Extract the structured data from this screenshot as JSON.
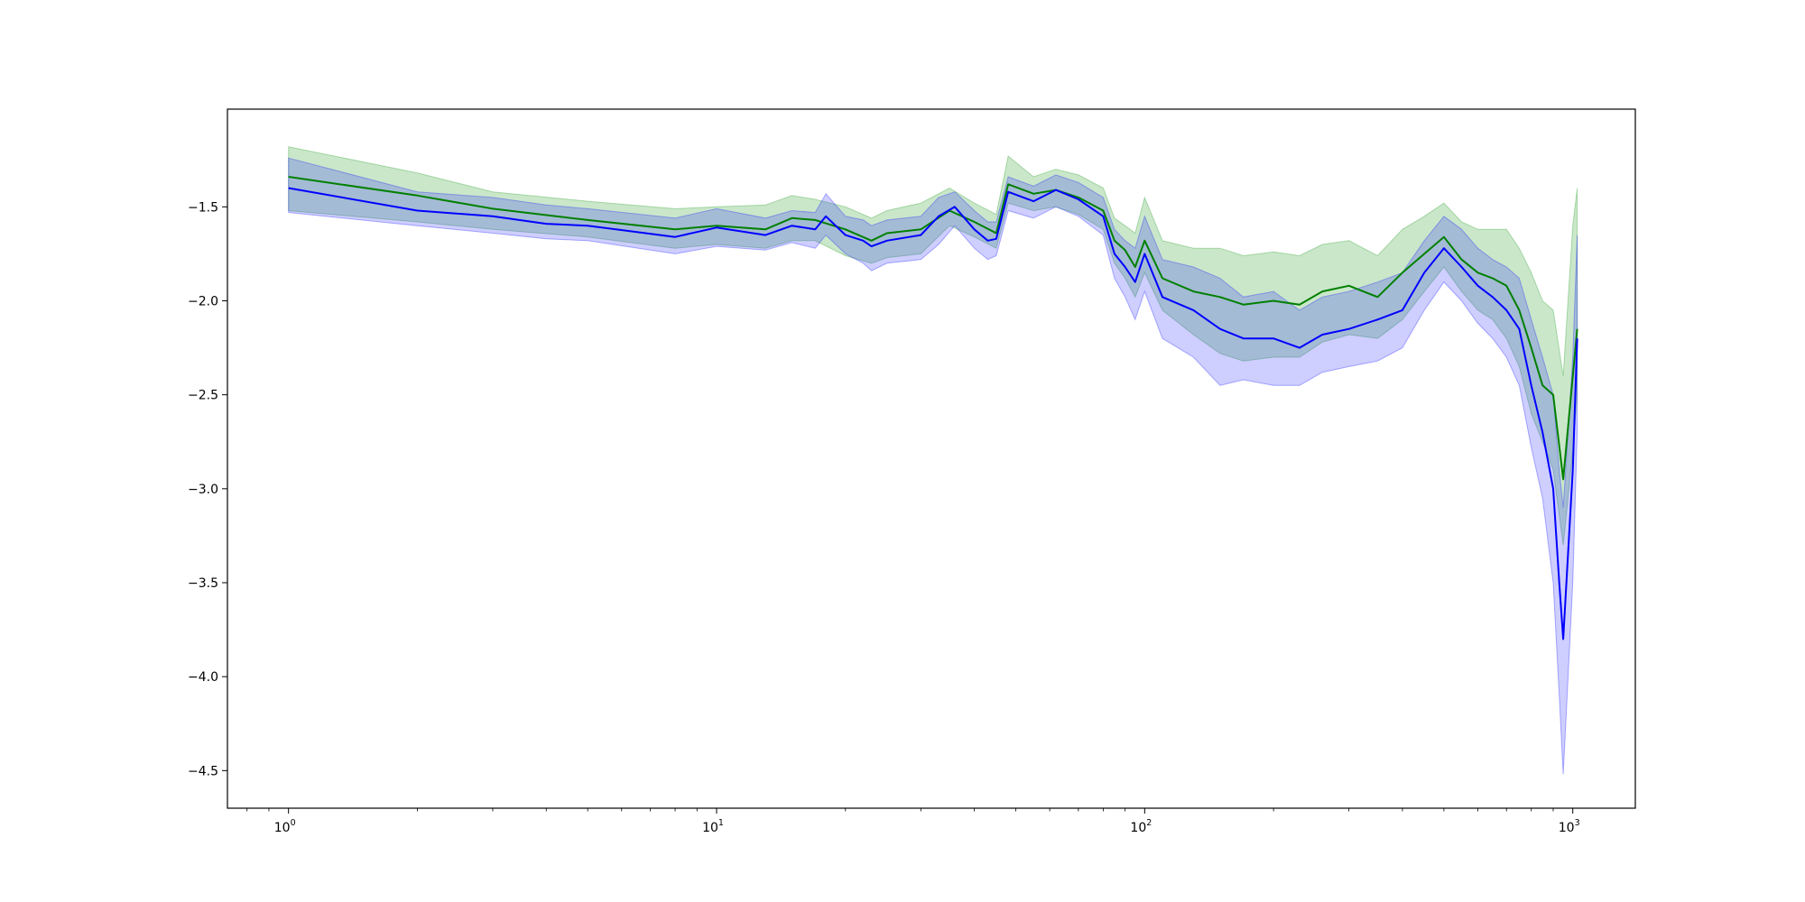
{
  "chart_data": {
    "type": "line",
    "title": "",
    "xlabel": "",
    "ylabel": "",
    "xscale": "log",
    "xlim": [
      0.72,
      1400
    ],
    "ylim": [
      -4.7,
      -0.98
    ],
    "grid": false,
    "legend": "none",
    "x_ticks": [
      {
        "base": "10",
        "exp": "0",
        "value": 1
      },
      {
        "base": "10",
        "exp": "1",
        "value": 10
      },
      {
        "base": "10",
        "exp": "2",
        "value": 100
      },
      {
        "base": "10",
        "exp": "3",
        "value": 1000
      }
    ],
    "y_ticks": [
      {
        "label": "−1.5",
        "value": -1.5
      },
      {
        "label": "−2.0",
        "value": -2.0
      },
      {
        "label": "−2.5",
        "value": -2.5
      },
      {
        "label": "−3.0",
        "value": -3.0
      },
      {
        "label": "−3.5",
        "value": -3.5
      },
      {
        "label": "−4.0",
        "value": -4.0
      },
      {
        "label": "−4.5",
        "value": -4.5
      }
    ],
    "series": [
      {
        "color": "#008000",
        "band_color": "#2ca02c",
        "band_opacity": 0.25,
        "x": [
          1,
          2,
          3,
          5,
          8,
          10,
          13,
          15,
          17,
          20,
          23,
          25,
          30,
          35,
          40,
          45,
          48,
          55,
          62,
          70,
          80,
          85,
          90,
          95,
          100,
          110,
          130,
          150,
          170,
          200,
          230,
          260,
          300,
          350,
          400,
          450,
          500,
          550,
          600,
          650,
          700,
          750,
          800,
          850,
          900,
          950,
          1000,
          1024
        ],
        "y": [
          -1.34,
          -1.44,
          -1.51,
          -1.57,
          -1.62,
          -1.6,
          -1.62,
          -1.56,
          -1.57,
          -1.62,
          -1.68,
          -1.64,
          -1.62,
          -1.52,
          -1.58,
          -1.64,
          -1.38,
          -1.43,
          -1.41,
          -1.45,
          -1.52,
          -1.68,
          -1.73,
          -1.82,
          -1.68,
          -1.88,
          -1.95,
          -1.98,
          -2.02,
          -2.0,
          -2.02,
          -1.95,
          -1.92,
          -1.98,
          -1.85,
          -1.75,
          -1.66,
          -1.78,
          -1.85,
          -1.88,
          -1.92,
          -2.05,
          -2.25,
          -2.45,
          -2.5,
          -2.95,
          -2.4,
          -2.15
        ],
        "lower": [
          -1.52,
          -1.58,
          -1.62,
          -1.66,
          -1.72,
          -1.7,
          -1.72,
          -1.68,
          -1.68,
          -1.76,
          -1.8,
          -1.77,
          -1.75,
          -1.6,
          -1.66,
          -1.72,
          -1.48,
          -1.52,
          -1.5,
          -1.54,
          -1.62,
          -1.8,
          -1.88,
          -1.98,
          -1.85,
          -2.05,
          -2.18,
          -2.28,
          -2.32,
          -2.3,
          -2.3,
          -2.22,
          -2.18,
          -2.2,
          -2.1,
          -1.95,
          -1.82,
          -1.95,
          -2.05,
          -2.1,
          -2.2,
          -2.35,
          -2.6,
          -2.75,
          -2.9,
          -3.3,
          -2.8,
          -2.5
        ],
        "upper": [
          -1.18,
          -1.32,
          -1.42,
          -1.47,
          -1.51,
          -1.5,
          -1.49,
          -1.44,
          -1.46,
          -1.5,
          -1.56,
          -1.52,
          -1.48,
          -1.4,
          -1.48,
          -1.54,
          -1.23,
          -1.34,
          -1.3,
          -1.33,
          -1.4,
          -1.56,
          -1.6,
          -1.64,
          -1.45,
          -1.68,
          -1.72,
          -1.72,
          -1.76,
          -1.74,
          -1.76,
          -1.7,
          -1.68,
          -1.76,
          -1.62,
          -1.55,
          -1.48,
          -1.58,
          -1.62,
          -1.62,
          -1.62,
          -1.72,
          -1.85,
          -2.0,
          -2.05,
          -2.4,
          -1.6,
          -1.4
        ]
      },
      {
        "color": "#0000ff",
        "band_color": "#1f1fff",
        "band_opacity": 0.22,
        "x": [
          1,
          2,
          3,
          4,
          5,
          8,
          10,
          13,
          15,
          17,
          18,
          20,
          22,
          23,
          25,
          30,
          33,
          36,
          40,
          43,
          45,
          48,
          55,
          62,
          70,
          80,
          85,
          90,
          95,
          100,
          110,
          130,
          150,
          170,
          200,
          230,
          260,
          300,
          350,
          400,
          450,
          500,
          550,
          600,
          650,
          700,
          750,
          800,
          850,
          900,
          930,
          950,
          1000,
          1024
        ],
        "y": [
          -1.4,
          -1.52,
          -1.55,
          -1.59,
          -1.6,
          -1.66,
          -1.61,
          -1.65,
          -1.6,
          -1.62,
          -1.55,
          -1.65,
          -1.68,
          -1.71,
          -1.68,
          -1.65,
          -1.55,
          -1.5,
          -1.62,
          -1.68,
          -1.67,
          -1.42,
          -1.47,
          -1.41,
          -1.46,
          -1.55,
          -1.75,
          -1.82,
          -1.9,
          -1.75,
          -1.98,
          -2.05,
          -2.15,
          -2.2,
          -2.2,
          -2.25,
          -2.18,
          -2.15,
          -2.1,
          -2.05,
          -1.85,
          -1.72,
          -1.82,
          -1.92,
          -1.98,
          -2.05,
          -2.15,
          -2.45,
          -2.7,
          -3.0,
          -3.5,
          -3.8,
          -2.9,
          -2.2
        ],
        "lower": [
          -1.53,
          -1.6,
          -1.64,
          -1.67,
          -1.68,
          -1.75,
          -1.71,
          -1.73,
          -1.69,
          -1.72,
          -1.65,
          -1.75,
          -1.8,
          -1.84,
          -1.8,
          -1.78,
          -1.7,
          -1.6,
          -1.72,
          -1.78,
          -1.76,
          -1.52,
          -1.56,
          -1.5,
          -1.55,
          -1.65,
          -1.88,
          -1.98,
          -2.1,
          -1.95,
          -2.2,
          -2.3,
          -2.45,
          -2.42,
          -2.45,
          -2.45,
          -2.38,
          -2.35,
          -2.32,
          -2.25,
          -2.05,
          -1.9,
          -2.0,
          -2.12,
          -2.2,
          -2.3,
          -2.45,
          -2.78,
          -3.05,
          -3.5,
          -4.1,
          -4.52,
          -3.5,
          -2.7
        ],
        "upper": [
          -1.24,
          -1.42,
          -1.45,
          -1.49,
          -1.51,
          -1.56,
          -1.51,
          -1.56,
          -1.52,
          -1.53,
          -1.43,
          -1.55,
          -1.57,
          -1.6,
          -1.57,
          -1.55,
          -1.45,
          -1.42,
          -1.52,
          -1.58,
          -1.58,
          -1.34,
          -1.39,
          -1.33,
          -1.37,
          -1.45,
          -1.62,
          -1.68,
          -1.72,
          -1.55,
          -1.78,
          -1.82,
          -1.88,
          -1.98,
          -1.95,
          -2.05,
          -1.98,
          -1.95,
          -1.9,
          -1.85,
          -1.68,
          -1.55,
          -1.62,
          -1.72,
          -1.78,
          -1.82,
          -1.88,
          -2.1,
          -2.3,
          -2.5,
          -2.9,
          -3.1,
          -2.3,
          -1.65
        ]
      }
    ]
  }
}
